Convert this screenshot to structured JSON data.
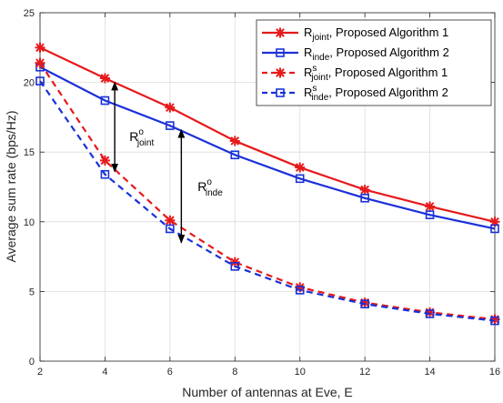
{
  "chart_data": {
    "type": "line",
    "xlabel": "Number of antennas at Eve, E",
    "ylabel": "Average sum rate (bps/Hz)",
    "xlim": [
      2,
      16
    ],
    "ylim": [
      0,
      25
    ],
    "x_ticks": [
      "2",
      "4",
      "6",
      "8",
      "10",
      "12",
      "14",
      "16"
    ],
    "y_ticks": [
      "0",
      "5",
      "10",
      "15",
      "20",
      "25"
    ],
    "grid": true,
    "legend_position": "top-right",
    "x": [
      2,
      4,
      6,
      8,
      10,
      12,
      14,
      16
    ],
    "series": [
      {
        "name": "R_joint, Proposed Algorithm 1",
        "main": "R",
        "sub": "joint",
        "sup": "",
        "rest": ", Proposed Algorithm 1",
        "color": "#e6191b",
        "dash": false,
        "marker": "star",
        "values": [
          22.5,
          20.3,
          18.2,
          15.8,
          13.9,
          12.3,
          11.1,
          10.0
        ]
      },
      {
        "name": "R_inde, Proposed Algorithm 2",
        "main": "R",
        "sub": "inde",
        "sup": "",
        "rest": ", Proposed Algorithm 2",
        "color": "#1a30d8",
        "dash": false,
        "marker": "square",
        "values": [
          21.1,
          18.7,
          16.9,
          14.8,
          13.1,
          11.7,
          10.5,
          9.5
        ]
      },
      {
        "name": "R^s_joint, Proposed Algorithm 1",
        "main": "R",
        "sub": "joint",
        "sup": "s",
        "rest": ", Proposed Algorithm 1",
        "color": "#e6191b",
        "dash": true,
        "marker": "star",
        "values": [
          21.4,
          14.4,
          10.1,
          7.1,
          5.3,
          4.2,
          3.5,
          3.0
        ]
      },
      {
        "name": "R^s_inde, Proposed Algorithm 2",
        "main": "R",
        "sub": "inde",
        "sup": "s",
        "rest": ", Proposed Algorithm 2",
        "color": "#1a30d8",
        "dash": true,
        "marker": "square",
        "values": [
          20.1,
          13.4,
          9.5,
          6.8,
          5.1,
          4.1,
          3.4,
          2.9
        ]
      }
    ],
    "annotations": [
      {
        "main": "R",
        "sup": "o",
        "sub": "joint",
        "x": 4.3,
        "y_top": 20.0,
        "y_bottom": 13.6,
        "label_x": 4.75,
        "label_y": 15.8
      },
      {
        "main": "R",
        "sup": "o",
        "sub": "inde",
        "x": 6.35,
        "y_top": 16.6,
        "y_bottom": 8.5,
        "label_x": 6.85,
        "label_y": 12.2
      }
    ]
  }
}
